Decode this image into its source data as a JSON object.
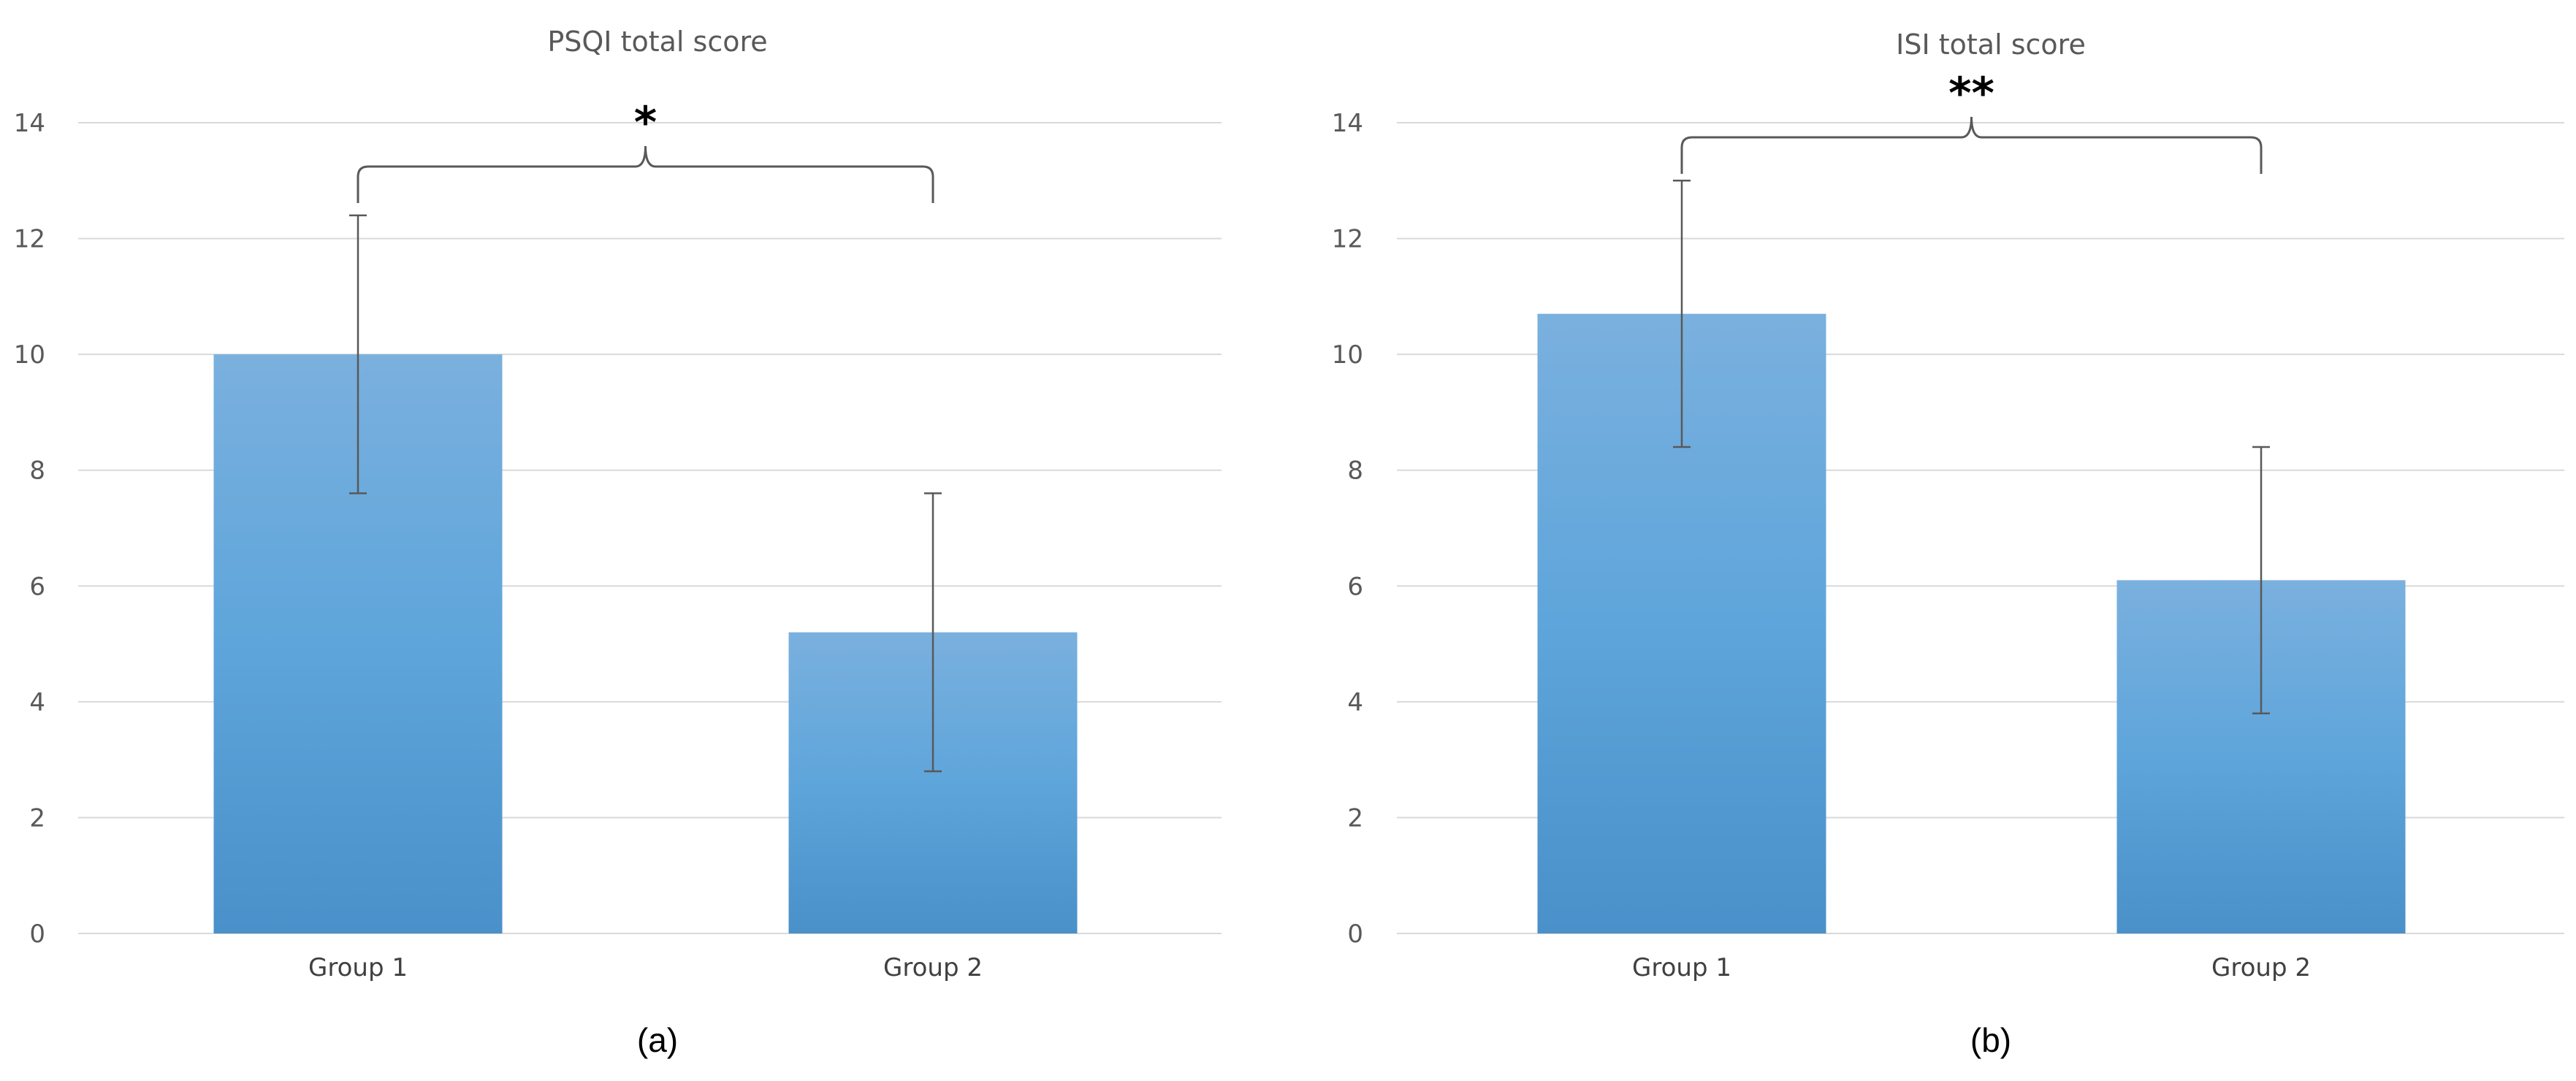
{
  "chart_data": [
    {
      "type": "bar",
      "title": "PSQI total score",
      "categories": [
        "Group 1",
        "Group 2"
      ],
      "values": [
        10.0,
        5.2
      ],
      "error": [
        2.4,
        2.4
      ],
      "ylim": [
        0,
        14
      ],
      "yticks": [
        0,
        2,
        4,
        6,
        8,
        10,
        12,
        14
      ],
      "grid": true,
      "significance": "*",
      "panel_label": "(a)",
      "colors": {
        "bar_top": "#7ab0de",
        "bar_mid": "#5ea5db",
        "bar_bottom": "#4a90c9"
      }
    },
    {
      "type": "bar",
      "title": "ISI total score",
      "categories": [
        "Group 1",
        "Group 2"
      ],
      "values": [
        10.7,
        6.1
      ],
      "error": [
        2.3,
        2.3
      ],
      "ylim": [
        0,
        14
      ],
      "yticks": [
        0,
        2,
        4,
        6,
        8,
        10,
        12,
        14
      ],
      "grid": true,
      "significance": "**",
      "panel_label": "(b)",
      "colors": {
        "bar_top": "#7ab0de",
        "bar_mid": "#5ea5db",
        "bar_bottom": "#4a90c9"
      }
    }
  ]
}
